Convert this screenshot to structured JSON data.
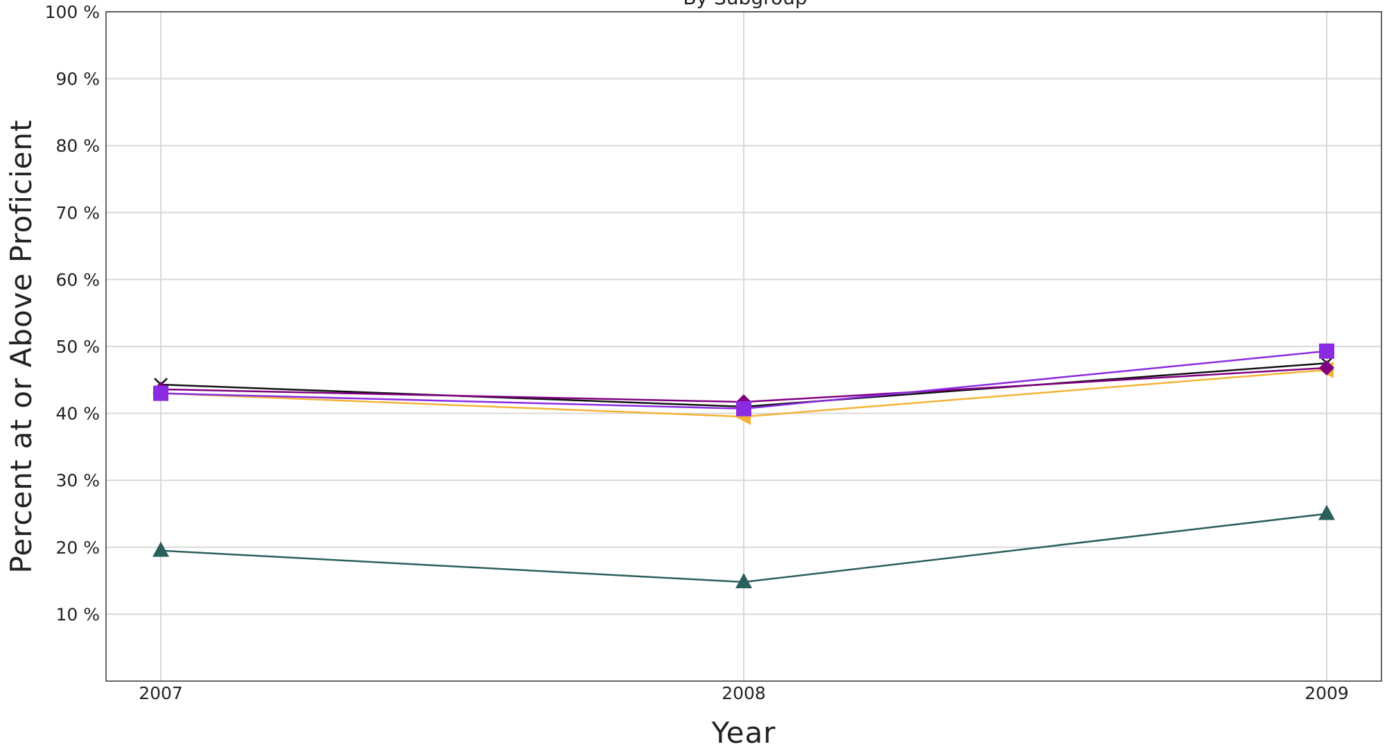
{
  "chart_data": {
    "type": "line",
    "subtitle": "By Subgroup",
    "xlabel": "Year",
    "ylabel": "Percent at or Above Proficient",
    "categories": [
      "2007",
      "2008",
      "2009"
    ],
    "ylim": [
      0,
      100
    ],
    "yticks": [
      10,
      20,
      30,
      40,
      50,
      60,
      70,
      80,
      90,
      100
    ],
    "ytick_labels": [
      "10 %",
      "20 %",
      "30 %",
      "40 %",
      "50 %",
      "60 %",
      "70 %",
      "80 %",
      "90 %",
      "100 %"
    ],
    "grid": true,
    "legend": "none",
    "series": [
      {
        "color": "#2a5f5c",
        "marker": "triangle-up",
        "values": [
          19.5,
          14.8,
          25.0
        ]
      },
      {
        "color": "#f5b335",
        "marker": "triangle-left",
        "values": [
          43.0,
          39.5,
          46.5
        ]
      },
      {
        "color": "#111111",
        "marker": "x",
        "values": [
          44.3,
          41.0,
          47.5
        ]
      },
      {
        "color": "#800080",
        "marker": "diamond",
        "values": [
          43.6,
          41.7,
          46.8
        ]
      },
      {
        "color": "#8a2be2",
        "marker": "square",
        "values": [
          43.0,
          40.7,
          49.3
        ]
      }
    ]
  }
}
